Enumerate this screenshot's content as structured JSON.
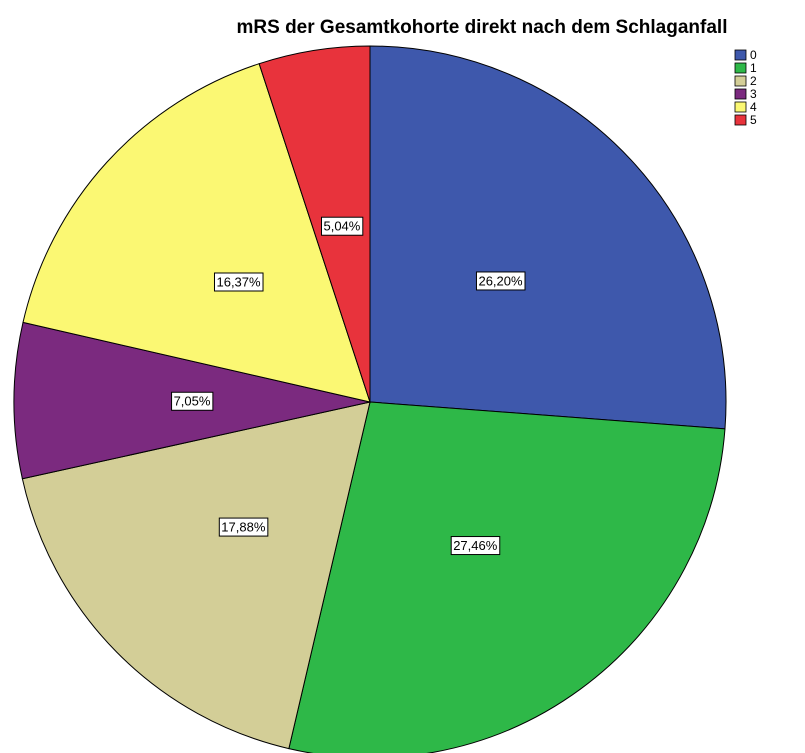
{
  "chart_data": {
    "type": "pie",
    "title": "mRS der Gesamtkohorte direkt nach dem Schlaganfall",
    "categories": [
      "0",
      "1",
      "2",
      "3",
      "4",
      "5"
    ],
    "values": [
      26.2,
      27.46,
      17.88,
      7.05,
      16.37,
      5.04
    ],
    "value_labels": [
      "26,20%",
      "27,46%",
      "17,88%",
      "7,05%",
      "16,37%",
      "5,04%"
    ],
    "colors": [
      "#3e58ac",
      "#2eb848",
      "#d3ce97",
      "#7b2a7f",
      "#fbf873",
      "#e8333c"
    ],
    "legend": "top-right"
  }
}
